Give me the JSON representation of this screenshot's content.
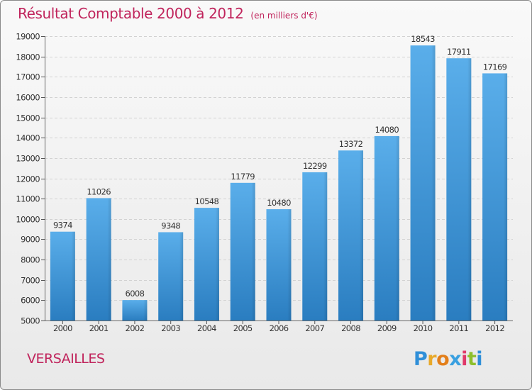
{
  "title": "Résultat Comptable 2000 à 2012",
  "unit": "(en milliers d'€)",
  "city": "VERSAILLES",
  "logo": "Proxiti",
  "colors": {
    "title": "#c0245c",
    "bar_top": "#5aaeea",
    "bar_bottom": "#2a7dc0"
  },
  "chart_data": {
    "type": "bar",
    "categories": [
      "2000",
      "2001",
      "2002",
      "2003",
      "2004",
      "2005",
      "2006",
      "2007",
      "2008",
      "2009",
      "2010",
      "2011",
      "2012"
    ],
    "values": [
      9374,
      11026,
      6008,
      9348,
      10548,
      11779,
      10480,
      12299,
      13372,
      14080,
      18543,
      17911,
      17169
    ],
    "ylim": [
      5000,
      19000
    ],
    "yticks": [
      5000,
      6000,
      7000,
      8000,
      9000,
      10000,
      11000,
      12000,
      13000,
      14000,
      15000,
      16000,
      17000,
      18000,
      19000
    ],
    "grid": true,
    "title": "Résultat Comptable 2000 à 2012",
    "xlabel": "",
    "ylabel": ""
  }
}
